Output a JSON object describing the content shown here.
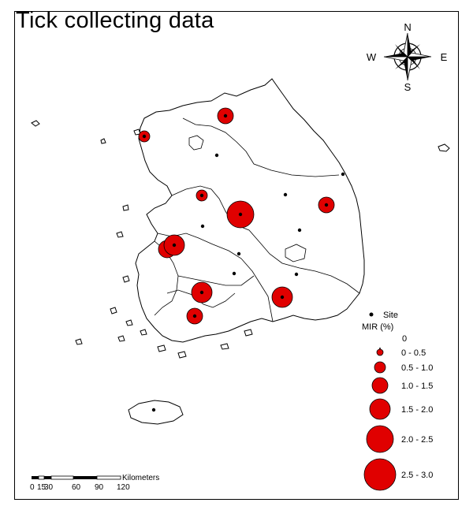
{
  "title": "Tick collecting data",
  "compass": {
    "north": "N",
    "south": "S",
    "east": "E",
    "west": "W"
  },
  "legend": {
    "site_label": "Site",
    "mir_title": "MIR (%)",
    "classes": [
      "0",
      "0 - 0.5",
      "0.5 - 1.0",
      "1.0 - 1.5",
      "1.5 - 2.0",
      "2.0 - 2.5",
      "2.5 - 3.0"
    ]
  },
  "scale_bar": {
    "unit": "Kilometers",
    "ticks": [
      "0",
      "15",
      "30",
      "60",
      "90",
      "120"
    ]
  },
  "colors": {
    "mir_fill": "#e00000",
    "site_dot": "#000000",
    "outline": "#000000"
  },
  "sites": [
    {
      "name": "site",
      "mir_class": 3
    },
    {
      "name": "site",
      "mir_class": 2
    },
    {
      "name": "site",
      "mir_class": 0
    },
    {
      "name": "site",
      "mir_class": 0
    },
    {
      "name": "site",
      "mir_class": 2
    },
    {
      "name": "site",
      "mir_class": 5
    },
    {
      "name": "site",
      "mir_class": 3
    },
    {
      "name": "site",
      "mir_class": 0
    },
    {
      "name": "site",
      "mir_class": 0
    },
    {
      "name": "site",
      "mir_class": 0
    },
    {
      "name": "site",
      "mir_class": 4
    },
    {
      "name": "site",
      "mir_class": 0
    },
    {
      "name": "site",
      "mir_class": 0
    },
    {
      "name": "site",
      "mir_class": 0
    },
    {
      "name": "site",
      "mir_class": 4
    },
    {
      "name": "site",
      "mir_class": 4
    },
    {
      "name": "site",
      "mir_class": 3
    },
    {
      "name": "site",
      "mir_class": 0
    }
  ]
}
